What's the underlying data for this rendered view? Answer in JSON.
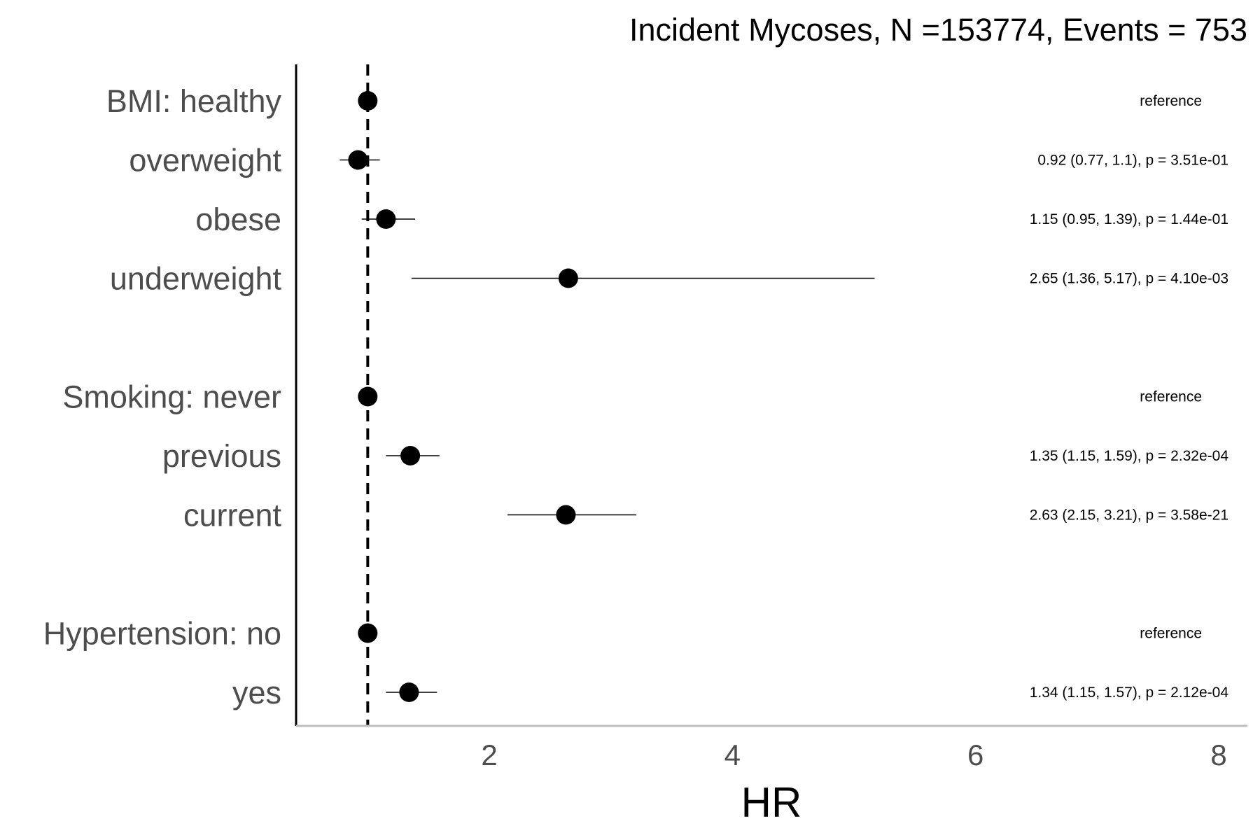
{
  "chart_data": {
    "type": "scatter",
    "subtype": "forest",
    "title": "Incident Mycoses, N =153774, Events = 753",
    "xlabel": "HR",
    "ylabel": "",
    "xlim": [
      0.42,
      8.2
    ],
    "xticks": [
      2,
      4,
      6,
      8
    ],
    "xtick_labels": [
      "2",
      "4",
      "6",
      "8"
    ],
    "reference_line": 1,
    "grid": false,
    "rows": [
      {
        "label": "BMI: healthy",
        "hr": 1.0,
        "lower": null,
        "upper": null,
        "annotation": "reference"
      },
      {
        "label": "overweight",
        "hr": 0.92,
        "lower": 0.77,
        "upper": 1.1,
        "annotation": "0.92 (0.77, 1.1), p = 3.51e-01"
      },
      {
        "label": "obese",
        "hr": 1.15,
        "lower": 0.95,
        "upper": 1.39,
        "annotation": "1.15 (0.95, 1.39), p = 1.44e-01"
      },
      {
        "label": "underweight",
        "hr": 2.65,
        "lower": 1.36,
        "upper": 5.17,
        "annotation": "2.65 (1.36, 5.17), p = 4.10e-03"
      },
      {
        "label": "",
        "spacer": true
      },
      {
        "label": "Smoking: never",
        "hr": 1.0,
        "lower": null,
        "upper": null,
        "annotation": "reference"
      },
      {
        "label": "previous",
        "hr": 1.35,
        "lower": 1.15,
        "upper": 1.59,
        "annotation": "1.35 (1.15, 1.59), p = 2.32e-04"
      },
      {
        "label": "current",
        "hr": 2.63,
        "lower": 2.15,
        "upper": 3.21,
        "annotation": "2.63 (2.15, 3.21), p = 3.58e-21"
      },
      {
        "label": "",
        "spacer": true
      },
      {
        "label": "Hypertension: no",
        "hr": 1.0,
        "lower": null,
        "upper": null,
        "annotation": "reference"
      },
      {
        "label": "yes",
        "hr": 1.34,
        "lower": 1.15,
        "upper": 1.57,
        "annotation": "1.34 (1.15, 1.57), p = 2.12e-04"
      }
    ]
  },
  "colors": {
    "point": "#000000",
    "axis_left": "#000000",
    "axis_bottom": "#bebebe",
    "label_text": "#4d4d4d"
  }
}
